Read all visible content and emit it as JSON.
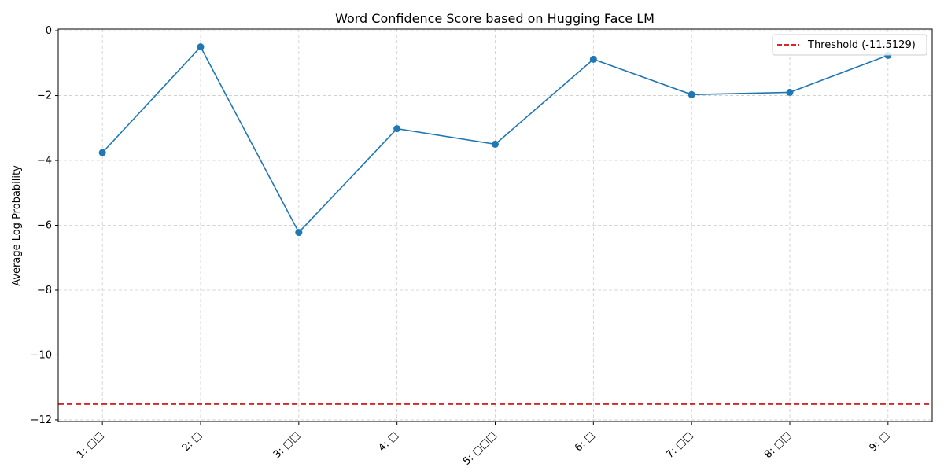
{
  "chart_data": {
    "type": "line",
    "title": "Word Confidence Score based on Hugging Face LM",
    "xlabel": "",
    "ylabel": "Average Log Probability",
    "categories": [
      "1: □□",
      "2: □",
      "3: □□",
      "4: □",
      "5: □□□",
      "6: □",
      "7: □□",
      "8: □□",
      "9: □"
    ],
    "series": [
      {
        "values": [
          -3.76,
          -0.5,
          -6.22,
          -3.02,
          -3.5,
          -0.88,
          -1.97,
          -1.9,
          -0.76
        ],
        "color": "#1f77b4"
      }
    ],
    "threshold": {
      "value": -11.5129,
      "label": "Threshold (-11.5129)",
      "color": "#d62728",
      "style": "dashed"
    },
    "ylim": [
      -12.05,
      0.05
    ],
    "yticks": [
      0,
      -2,
      -4,
      -6,
      -8,
      -10,
      -12
    ],
    "ytick_labels": [
      "0",
      "−2",
      "−4",
      "−6",
      "−8",
      "−10",
      "−12"
    ],
    "grid": true,
    "legend_position": "top-right"
  }
}
